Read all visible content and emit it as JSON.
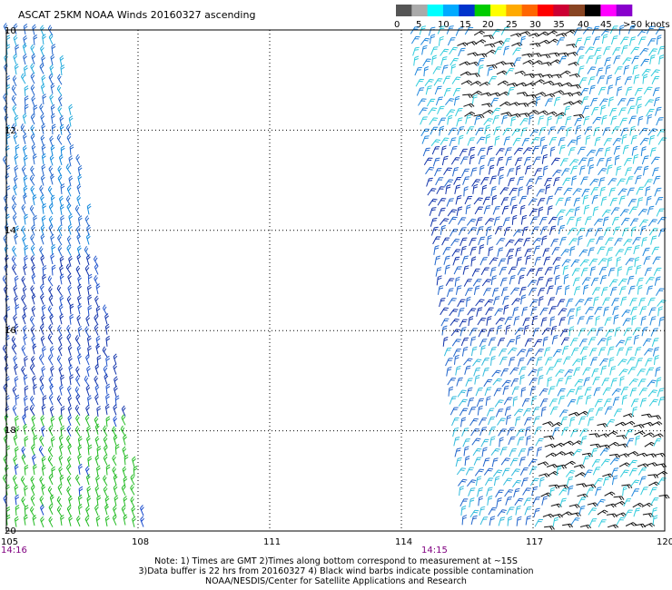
{
  "title": "ASCAT 25KM NOAA Winds 20160327 ascending",
  "legend": {
    "labels": [
      "0",
      "5",
      "10",
      "15",
      "20",
      "25",
      "30",
      "35",
      "40",
      "45",
      ">50 knots"
    ],
    "colors": [
      "#555555",
      "#aaaaaa",
      "#00ffff",
      "#00aaff",
      "#0033cc",
      "#00cc00",
      "#ffff00",
      "#ffaa00",
      "#ff6600",
      "#ff0000",
      "#cc0033",
      "#884422",
      "#000000",
      "#ff00ff",
      "#8800cc"
    ]
  },
  "axes": {
    "lon_ticks": [
      "105",
      "108",
      "111",
      "114",
      "117",
      "120"
    ],
    "lat_ticks": [
      "10",
      "12",
      "14",
      "16",
      "18",
      "20"
    ]
  },
  "times": [
    "14:16",
    "14:15"
  ],
  "notes": [
    "Note: 1) Times are GMT 2)Times along bottom correspond to measurement at ~15S",
    "3)Data buffer is 22 hrs from 20160327 4) Black wind barbs indicate possible contamination",
    "NOAA/NESDIS/Center for Satellite Applications and Research"
  ],
  "chart_data": {
    "type": "wind-barb-map",
    "xlim": [
      105,
      120
    ],
    "ylim": [
      -20,
      -10
    ],
    "swaths": [
      {
        "lon_range_top": [
          105,
          106.2
        ],
        "lon_range_bottom": [
          105,
          108.3
        ],
        "time": "14:16"
      },
      {
        "lon_range_top": [
          114.2,
          120
        ],
        "lon_range_bottom": [
          115.4,
          120
        ],
        "time": "14:15"
      }
    ]
  }
}
